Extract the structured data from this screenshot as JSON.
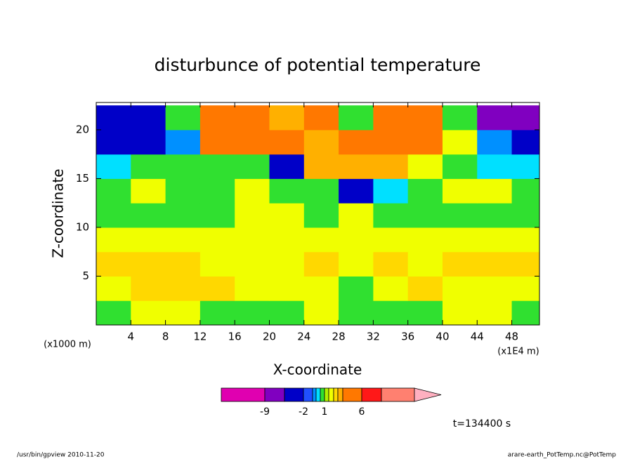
{
  "chart_data": {
    "type": "contour",
    "title": "disturbunce of potential temperature",
    "x_label": "X-coordinate",
    "y_label": "Z-coordinate",
    "x_unit": "(x1E4 m)",
    "y_unit": "(x1000 m)",
    "xlim": [
      0,
      51.2
    ],
    "ylim": [
      0,
      22.8
    ],
    "xticks": [
      4,
      8,
      12,
      16,
      20,
      24,
      28,
      32,
      36,
      40,
      44,
      48
    ],
    "yticks": [
      5,
      10,
      15,
      20
    ],
    "x": [
      2,
      6,
      10,
      14,
      18,
      22,
      26,
      30,
      34,
      38,
      42,
      46,
      50
    ],
    "y": [
      1.25,
      3.75,
      6.25,
      8.75,
      11.25,
      13.75,
      16.25,
      18.75,
      21.25
    ],
    "z": [
      [
        0.5,
        1.7,
        1.7,
        0.5,
        0.5,
        0.5,
        1.7,
        0.5,
        0.5,
        0.5,
        1.7,
        1.7,
        0.5
      ],
      [
        1.7,
        2.5,
        2.5,
        2.5,
        1.7,
        1.7,
        1.7,
        0.5,
        1.7,
        2.5,
        1.7,
        1.7,
        1.7
      ],
      [
        2.5,
        2.5,
        2.5,
        1.7,
        1.7,
        1.7,
        2.5,
        1.7,
        2.5,
        1.7,
        2.5,
        2.5,
        2.5
      ],
      [
        1.7,
        1.7,
        1.7,
        1.7,
        1.7,
        1.7,
        1.7,
        1.7,
        1.7,
        1.7,
        1.7,
        1.7,
        1.7
      ],
      [
        0.5,
        0.5,
        0.5,
        0.5,
        1.7,
        1.7,
        0.5,
        1.7,
        0.5,
        0.5,
        0.5,
        0.5,
        0.5
      ],
      [
        0.5,
        1.7,
        0.5,
        0.5,
        1.7,
        0.5,
        0.5,
        -2.5,
        -0.8,
        0.5,
        1.7,
        1.7,
        0.5
      ],
      [
        -0.8,
        0.5,
        0.5,
        0.5,
        0.5,
        -2.5,
        3.5,
        3.5,
        3.5,
        1.7,
        0.5,
        -0.8,
        -0.8
      ],
      [
        -3,
        -3,
        -1.2,
        5,
        4,
        5,
        3.5,
        5,
        5,
        5,
        1.7,
        -1.2,
        -3
      ],
      [
        -3,
        -3,
        0.5,
        5,
        5,
        3.5,
        5,
        0.5,
        5,
        5,
        0.5,
        -5,
        -5
      ]
    ],
    "levels": [
      -12,
      -9,
      -4,
      -2,
      -1.5,
      -1,
      -0.5,
      1,
      1.5,
      2,
      3,
      4,
      6,
      8,
      10
    ],
    "colors": [
      "#e000b0",
      "#8000c0",
      "#0000c8",
      "#2050ff",
      "#0090ff",
      "#00e0ff",
      "#30e030",
      "#b0f000",
      "#f0ff00",
      "#ffd800",
      "#ffb000",
      "#ff7800",
      "#ff1818",
      "#ff8070"
    ],
    "extend_color": "#ffb0c0",
    "colorbar_ticks": [
      -9,
      -2,
      1,
      6
    ],
    "time_label": "t=134400 s",
    "footer_left": "/usr/bin/gpview   2010-11-20",
    "footer_right": "arare-earth_PotTemp.nc@PotTemp"
  }
}
